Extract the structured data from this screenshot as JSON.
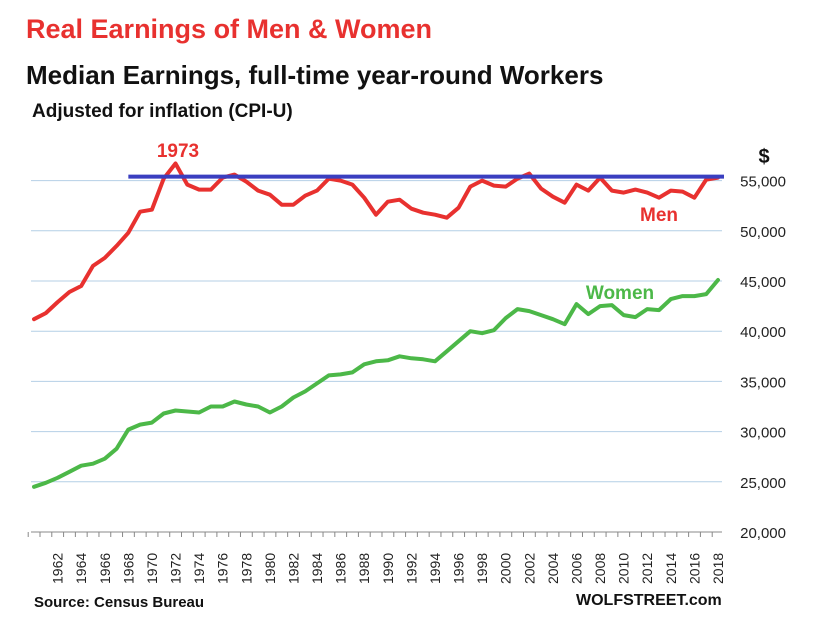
{
  "title": "Real Earnings of Men & Women",
  "subtitle": "Median Earnings, full-time year-round Workers",
  "note": "Adjusted for inflation (CPI-U)",
  "source": "Source: Census Bureau",
  "brand": "WOLFSTREET.com",
  "colors": {
    "men": "#e8312f",
    "women": "#4cb848",
    "reference": "#3a3fc0",
    "grid": "#b4cfe6"
  },
  "chart_data": {
    "type": "line",
    "title": "Real Earnings of Men & Women",
    "subtitle": "Median Earnings, full-time year-round Workers",
    "ylabel": "$",
    "ylim": [
      20000,
      57500
    ],
    "yticks": [
      20000,
      25000,
      30000,
      35000,
      40000,
      45000,
      50000,
      55000
    ],
    "ytick_labels": [
      "20,000",
      "25,000",
      "30,000",
      "35,000",
      "40,000",
      "45,000",
      "50,000",
      "55,000"
    ],
    "xlim": [
      1960,
      2018
    ],
    "xticks": [
      1962,
      1964,
      1966,
      1968,
      1970,
      1972,
      1974,
      1976,
      1978,
      1980,
      1982,
      1984,
      1986,
      1988,
      1990,
      1992,
      1994,
      1996,
      1998,
      2000,
      2002,
      2004,
      2006,
      2008,
      2010,
      2012,
      2014,
      2016,
      2018
    ],
    "grid": true,
    "x": [
      1960,
      1961,
      1962,
      1963,
      1964,
      1965,
      1966,
      1967,
      1968,
      1969,
      1970,
      1971,
      1972,
      1973,
      1974,
      1975,
      1976,
      1977,
      1978,
      1979,
      1980,
      1981,
      1982,
      1983,
      1984,
      1985,
      1986,
      1987,
      1988,
      1989,
      1990,
      1991,
      1992,
      1993,
      1994,
      1995,
      1996,
      1997,
      1998,
      1999,
      2000,
      2001,
      2002,
      2003,
      2004,
      2005,
      2006,
      2007,
      2008,
      2009,
      2010,
      2011,
      2012,
      2013,
      2014,
      2015,
      2016,
      2017,
      2018
    ],
    "series": [
      {
        "name": "Men",
        "values": [
          41200,
          41800,
          42900,
          43900,
          44500,
          46500,
          47300,
          48500,
          49800,
          51900,
          52100,
          55200,
          56700,
          54600,
          54100,
          54100,
          55300,
          55600,
          54900,
          54000,
          53600,
          52600,
          52600,
          53500,
          54000,
          55200,
          55000,
          54600,
          53300,
          51600,
          52900,
          53100,
          52200,
          51800,
          51600,
          51300,
          52300,
          54400,
          55000,
          54500,
          54400,
          55200,
          55700,
          54200,
          53400,
          52800,
          54600,
          54000,
          55300,
          54000,
          53800,
          54100,
          53800,
          53300,
          54000,
          53900,
          53300,
          55100,
          55300
        ]
      },
      {
        "name": "Women",
        "values": [
          24500,
          24900,
          25400,
          26000,
          26600,
          26800,
          27300,
          28300,
          30200,
          30700,
          30900,
          31800,
          32100,
          32000,
          31900,
          32500,
          32500,
          33000,
          32700,
          32500,
          31900,
          32500,
          33400,
          34000,
          34800,
          35600,
          35700,
          35900,
          36700,
          37000,
          37100,
          37500,
          37300,
          37200,
          37000,
          38000,
          39000,
          40000,
          39800,
          40100,
          41300,
          42200,
          42000,
          41600,
          41200,
          40700,
          42700,
          41700,
          42500,
          42600,
          41600,
          41400,
          42200,
          42100,
          43200,
          43500,
          43500,
          43700,
          45100
        ]
      }
    ],
    "reference_line": {
      "value": 55400,
      "from": 1968,
      "to": 2018
    },
    "annotations": [
      "1973",
      "Men",
      "Women"
    ]
  }
}
